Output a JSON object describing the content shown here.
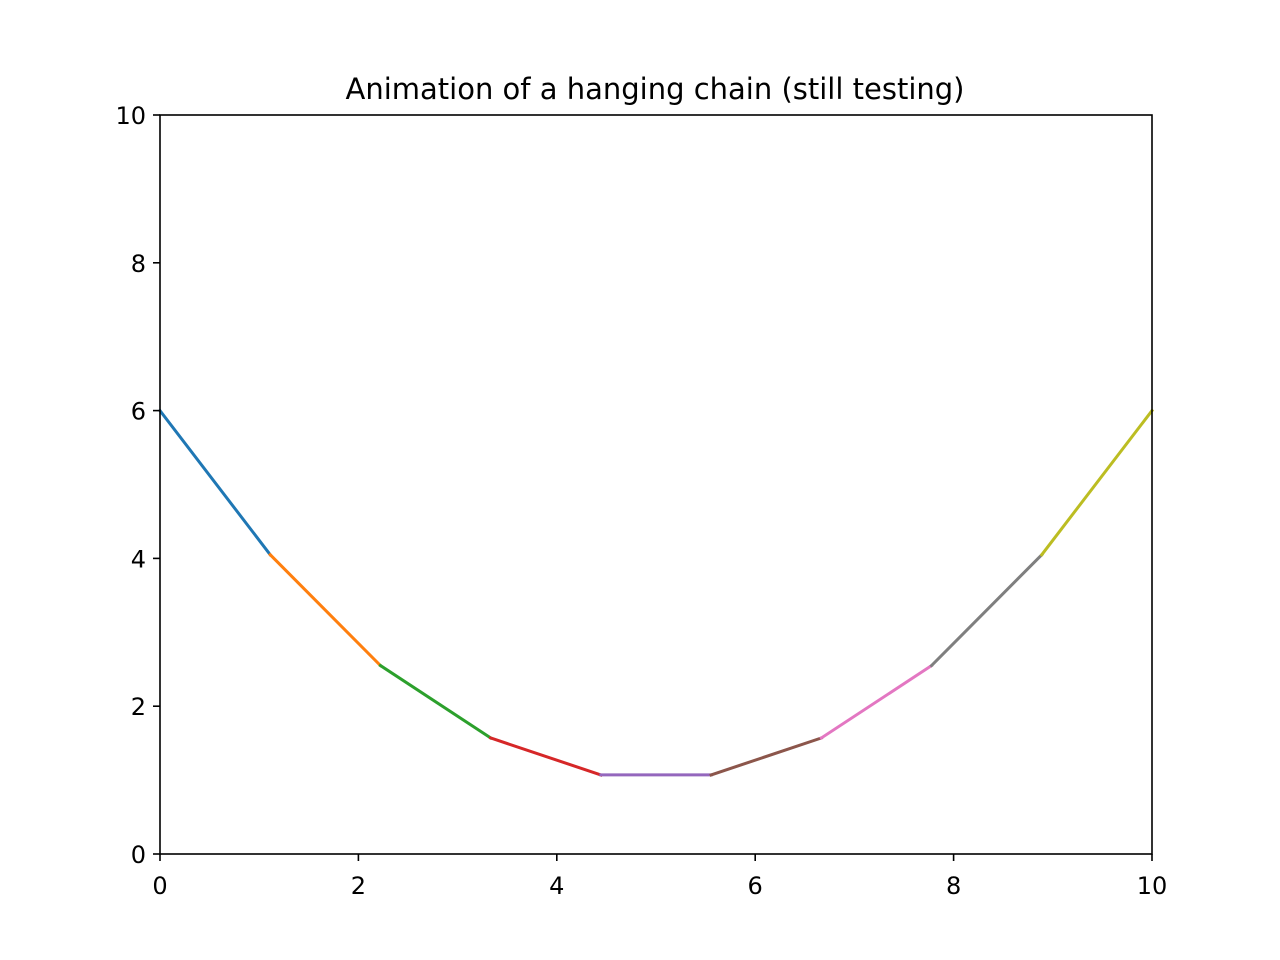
{
  "chart_data": {
    "type": "line",
    "title": "Animation of a hanging chain (still testing)",
    "xlabel": "",
    "ylabel": "",
    "xlim": [
      0,
      10
    ],
    "ylim": [
      0,
      10
    ],
    "xticks": [
      0,
      2,
      4,
      6,
      8,
      10
    ],
    "yticks": [
      0,
      2,
      4,
      6,
      8,
      10
    ],
    "x_tick_labels": [
      "0",
      "2",
      "4",
      "6",
      "8",
      "10"
    ],
    "y_tick_labels": [
      "0",
      "2",
      "4",
      "6",
      "8",
      "10"
    ],
    "grid": false,
    "legend": "none",
    "series": [
      {
        "color": "#1f77b4",
        "x": [
          0.0,
          1.1111
        ],
        "y": [
          6.0,
          4.05
        ]
      },
      {
        "color": "#ff7f0e",
        "x": [
          1.1111,
          2.2222
        ],
        "y": [
          4.05,
          2.55
        ]
      },
      {
        "color": "#2ca02c",
        "x": [
          2.2222,
          3.3333
        ],
        "y": [
          2.55,
          1.57
        ]
      },
      {
        "color": "#d62728",
        "x": [
          3.3333,
          4.4444
        ],
        "y": [
          1.57,
          1.07
        ]
      },
      {
        "color": "#9467bd",
        "x": [
          4.4444,
          5.5556
        ],
        "y": [
          1.07,
          1.07
        ]
      },
      {
        "color": "#8c564b",
        "x": [
          5.5556,
          6.6667
        ],
        "y": [
          1.07,
          1.57
        ]
      },
      {
        "color": "#e377c2",
        "x": [
          6.6667,
          7.7778
        ],
        "y": [
          1.57,
          2.55
        ]
      },
      {
        "color": "#7f7f7f",
        "x": [
          7.7778,
          8.8889
        ],
        "y": [
          2.55,
          4.05
        ]
      },
      {
        "color": "#bcbd22",
        "x": [
          8.8889,
          10.0
        ],
        "y": [
          4.05,
          6.0
        ]
      }
    ]
  }
}
